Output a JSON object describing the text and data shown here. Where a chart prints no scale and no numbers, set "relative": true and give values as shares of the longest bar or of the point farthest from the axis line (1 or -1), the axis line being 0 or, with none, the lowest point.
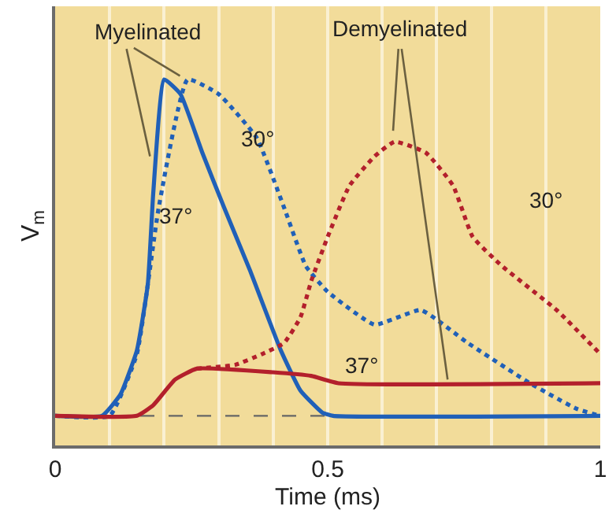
{
  "chart_data": {
    "type": "line",
    "relative": true,
    "xlabel": "Time (ms)",
    "ylabel": "V$_{m}$",
    "xlim": [
      0,
      1
    ],
    "xticks": [
      0,
      {
        "value": 0.1,
        "label": null
      },
      {
        "value": 0.2,
        "label": null
      },
      {
        "value": 0.3,
        "label": null
      },
      {
        "value": 0.4,
        "label": null
      },
      0.5,
      {
        "value": 0.6,
        "label": null
      },
      {
        "value": 0.7,
        "label": null
      },
      {
        "value": 0.8,
        "label": null
      },
      {
        "value": 0.9,
        "label": null
      },
      1
    ],
    "grid": "x",
    "marker": "none",
    "series": [
      {
        "color": "#2060b8",
        "line_style": "solid",
        "x": [
          0,
          0.086,
          0.12,
          0.15,
          0.17,
          0.18,
          0.2,
          0.23,
          0.27,
          0.31,
          0.357,
          0.414,
          0.45,
          0.49,
          0.51,
          1
        ],
        "values": [
          0.081,
          0.081,
          0.14,
          0.26,
          0.44,
          0.69,
          1,
          0.96,
          0.8,
          0.65,
          0.48,
          0.26,
          0.15,
          0.09,
          0.081,
          0.081
        ]
      },
      {
        "color": "#2060b8",
        "line_style": "dashed",
        "x": [
          0,
          0.1,
          0.15,
          0.19,
          0.243,
          0.3,
          0.37,
          0.42,
          0.46,
          0.5,
          0.586,
          0.671,
          0.757,
          0.871,
          0.957,
          1
        ],
        "values": [
          0.081,
          0.081,
          0.25,
          0.65,
          1,
          0.96,
          0.84,
          0.65,
          0.49,
          0.42,
          0.33,
          0.37,
          0.28,
          0.17,
          0.1,
          0.081
        ]
      },
      {
        "color": "#b3202c",
        "line_style": "solid",
        "x": [
          0,
          0.15,
          0.18,
          0.22,
          0.26,
          0.4,
          0.47,
          0.52,
          1
        ],
        "values": [
          0.081,
          0.081,
          0.11,
          0.18,
          0.21,
          0.2,
          0.19,
          0.17,
          0.17
        ]
      },
      {
        "color": "#b3202c",
        "line_style": "dashed",
        "x": [
          0.26,
          0.33,
          0.38,
          0.42,
          0.45,
          0.47,
          0.5,
          0.54,
          0.586,
          0.623,
          0.68,
          0.73,
          0.766,
          0.82,
          0.92,
          1
        ],
        "values": [
          0.21,
          0.22,
          0.25,
          0.28,
          0.35,
          0.45,
          0.57,
          0.71,
          0.79,
          0.83,
          0.8,
          0.71,
          0.57,
          0.49,
          0.37,
          0.25
        ]
      }
    ],
    "ref_lines": [
      {
        "axis": "y",
        "value": 0.081,
        "color": "#666666",
        "line_style": "dashed"
      }
    ],
    "annotations": [
      "Myelinated",
      "Demyelinated",
      "30°",
      "37°",
      "30°",
      "37°"
    ]
  }
}
